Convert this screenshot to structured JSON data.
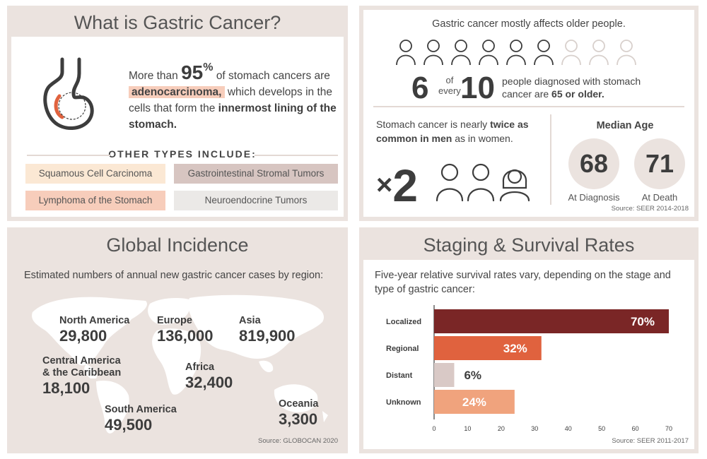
{
  "panel1": {
    "title": "What is Gastric Cancer?",
    "intro_prefix": "More than",
    "intro_pct": "95",
    "intro_pct_sym": "%",
    "intro_mid": "of stomach cancers are",
    "intro_highlight": "adenocarcinoma,",
    "intro_rest": "which develops in the cells that form the",
    "intro_bold_end": "innermost lining of the stomach.",
    "types_title": "OTHER TYPES INCLUDE:",
    "types": [
      {
        "label": "Squamous Cell Carcinoma",
        "color": "#fbe8d4"
      },
      {
        "label": "Gastrointestinal Stromal Tumors",
        "color": "#d7c5c1"
      },
      {
        "label": "Lymphoma of the Stomach",
        "color": "#f7cdbb"
      },
      {
        "label": "Neuroendocrine Tumors",
        "color": "#ebe9e7"
      }
    ]
  },
  "panel2": {
    "line1": "Gastric cancer mostly affects older people.",
    "big_a": "6",
    "of_txt": "of",
    "every_txt": "every",
    "big_b": "10",
    "desc_prefix": "people diagnosed with stomach cancer are",
    "desc_bold": "65 or older.",
    "twice_prefix": "Stomach cancer is nearly",
    "twice_bold": "twice as common in men",
    "twice_suffix": "as in women.",
    "times": "×",
    "times_num": "2",
    "median_title": "Median Age",
    "diag_age": "68",
    "diag_label": "At Diagnosis",
    "death_age": "71",
    "death_label": "At Death",
    "source": "Source: SEER 2014-2018"
  },
  "panel3": {
    "title": "Global Incidence",
    "subtitle": "Estimated numbers of annual new gastric cancer cases by region:",
    "regions": [
      {
        "name": "North America",
        "value": "29,800"
      },
      {
        "name": "Europe",
        "value": "136,000"
      },
      {
        "name": "Asia",
        "value": "819,900"
      },
      {
        "name": "Central America",
        "name2": "& the Caribbean",
        "value": "18,100"
      },
      {
        "name": "Africa",
        "value": "32,400"
      },
      {
        "name": "South America",
        "value": "49,500"
      },
      {
        "name": "Oceania",
        "value": "3,300"
      }
    ],
    "source": "Source: GLOBOCAN 2020"
  },
  "panel4": {
    "title": "Staging & Survival Rates",
    "subtitle": "Five-year relative survival rates vary, depending on the stage and type of gastric cancer:",
    "source": "Source: SEER 2011-2017"
  },
  "chart_data": {
    "type": "bar",
    "orientation": "horizontal",
    "categories": [
      "Localized",
      "Regional",
      "Distant",
      "Unknown"
    ],
    "values": [
      70,
      32,
      6,
      24
    ],
    "data_labels": [
      "70%",
      "32%",
      "6%",
      "24%"
    ],
    "colors": [
      "#7a2626",
      "#e0623e",
      "#d9c9c6",
      "#f0a37d"
    ],
    "xlim": [
      0,
      70
    ],
    "xticks": [
      0,
      10,
      20,
      30,
      40,
      50,
      60,
      70
    ],
    "grid": false
  }
}
